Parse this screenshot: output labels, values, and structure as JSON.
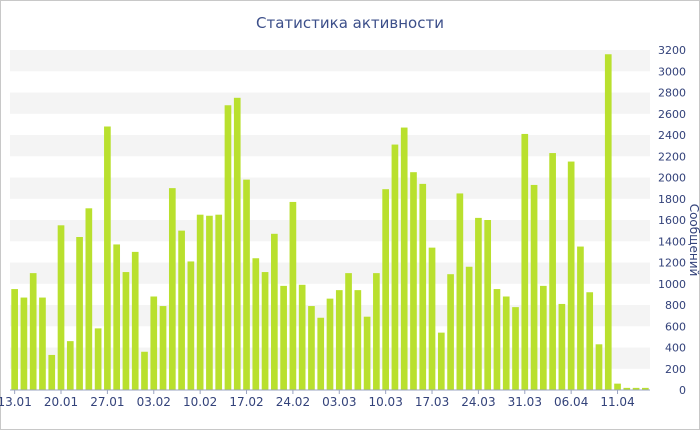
{
  "chart_data": {
    "type": "bar",
    "title": "Статистика активности",
    "ylabel": "Сообщений",
    "xlabel": "",
    "ylim": [
      0,
      3200
    ],
    "y_ticks": [
      0,
      200,
      400,
      600,
      800,
      1000,
      1200,
      1400,
      1600,
      1800,
      2000,
      2200,
      2400,
      2600,
      2800,
      3000,
      3200
    ],
    "x_tick_labels": [
      "13.01",
      "20.01",
      "27.01",
      "03.02",
      "10.02",
      "17.02",
      "24.02",
      "03.03",
      "10.03",
      "17.03",
      "24.03",
      "31.03",
      "06.04",
      "11.04"
    ],
    "x_tick_index": [
      0,
      5,
      10,
      15,
      20,
      25,
      30,
      35,
      40,
      45,
      50,
      55,
      60,
      65
    ],
    "grid": "horizontal-bands",
    "bar_color": "#b9e02e",
    "values": [
      950,
      870,
      1100,
      870,
      330,
      1550,
      460,
      1440,
      1710,
      580,
      2480,
      1370,
      1110,
      1300,
      360,
      880,
      790,
      1900,
      1500,
      1210,
      1650,
      1640,
      1650,
      2680,
      2750,
      1980,
      1240,
      1110,
      1470,
      980,
      1770,
      990,
      790,
      680,
      860,
      940,
      1100,
      940,
      690,
      1100,
      1890,
      2310,
      2470,
      2050,
      1940,
      1340,
      540,
      1090,
      1850,
      1160,
      1620,
      1600,
      950,
      880,
      780,
      2410,
      1930,
      980,
      2230,
      810,
      2150,
      1350,
      920,
      430,
      3160,
      60,
      20,
      20,
      20
    ]
  }
}
